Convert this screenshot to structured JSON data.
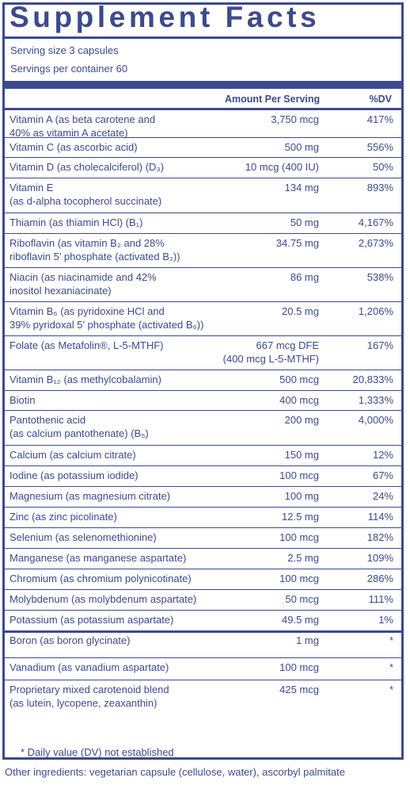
{
  "title": "Supplement Facts",
  "serving_size": "Serving size 3 capsules",
  "servings_per_container": "Servings per container  60",
  "header": {
    "amount": "Amount Per Serving",
    "dv": "%DV"
  },
  "rows": [
    {
      "lines": [
        "Vitamin A (as beta carotene and",
        "40% as vitamin A acetate)"
      ],
      "amount": [
        "3,750 mcg"
      ],
      "dv": "417%"
    },
    {
      "lines": [
        "Vitamin C (as ascorbic acid)"
      ],
      "amount": [
        "500 mg"
      ],
      "dv": "556%"
    },
    {
      "lines": [
        "Vitamin D (as cholecalciferol) (D₃)"
      ],
      "amount": [
        "10 mcg (400 IU)"
      ],
      "dv": "50%"
    },
    {
      "lines": [
        "Vitamin E",
        "(as d-alpha tocopherol succinate)"
      ],
      "amount": [
        "134 mg"
      ],
      "dv": "893%"
    },
    {
      "lines": [
        "Thiamin (as thiamin HCl) (B₁)"
      ],
      "amount": [
        "50 mg"
      ],
      "dv": "4,167%"
    },
    {
      "lines": [
        "Riboflavin (as vitamin B₂ and 28%",
        "riboflavin 5’ phosphate (activated B₂))"
      ],
      "amount": [
        "34.75 mg"
      ],
      "dv": "2,673%"
    },
    {
      "lines": [
        "Niacin (as niacinamide and 42%",
        "inositol hexaniacinate)"
      ],
      "amount": [
        "86 mg"
      ],
      "dv": "538%"
    },
    {
      "lines": [
        "Vitamin B₆ (as pyridoxine HCl and",
        "39% pyridoxal 5’ phosphate (activated B₆))"
      ],
      "amount": [
        "20.5 mg"
      ],
      "dv": "1,206%"
    },
    {
      "lines": [
        "Folate (as Metafolin®, L-5-MTHF)"
      ],
      "amount": [
        "667 mcg DFE",
        "(400 mcg L-5-MTHF)"
      ],
      "dv": "167%"
    },
    {
      "lines": [
        "Vitamin B₁₂ (as methylcobalamin)"
      ],
      "amount": [
        "500 mcg"
      ],
      "dv": "20,833%"
    },
    {
      "lines": [
        "Biotin"
      ],
      "amount": [
        "400 mcg"
      ],
      "dv": "1,333%"
    },
    {
      "lines": [
        "Pantothenic acid",
        "(as calcium pantothenate) (B₅)"
      ],
      "amount": [
        "200 mg"
      ],
      "dv": "4,000%"
    },
    {
      "lines": [
        "Calcium (as calcium citrate)"
      ],
      "amount": [
        "150 mg"
      ],
      "dv": "12%"
    },
    {
      "lines": [
        "Iodine (as potassium iodide)"
      ],
      "amount": [
        "100 mcg"
      ],
      "dv": "67%"
    },
    {
      "lines": [
        "Magnesium (as magnesium citrate)"
      ],
      "amount": [
        "100 mg"
      ],
      "dv": "24%"
    },
    {
      "lines": [
        "Zinc (as zinc picolinate)"
      ],
      "amount": [
        "12.5 mg"
      ],
      "dv": "114%"
    },
    {
      "lines": [
        "Selenium (as selenomethionine)"
      ],
      "amount": [
        "100 mcg"
      ],
      "dv": "182%"
    },
    {
      "lines": [
        "Manganese (as manganese aspartate)"
      ],
      "amount": [
        "2.5 mg"
      ],
      "dv": "109%"
    },
    {
      "lines": [
        "Chromium (as chromium polynicotinate)"
      ],
      "amount": [
        "100 mcg"
      ],
      "dv": "286%"
    },
    {
      "lines": [
        "Molybdenum (as molybdenum aspartate)"
      ],
      "amount": [
        "50 mcg"
      ],
      "dv": "111%"
    },
    {
      "lines": [
        "Potassium (as potassium aspartate)"
      ],
      "amount": [
        "49.5 mg"
      ],
      "dv": "1%"
    },
    {
      "lines": [
        "Boron (as boron glycinate)"
      ],
      "amount": [
        "1 mg"
      ],
      "dv": "*"
    },
    {
      "lines": [
        "Vanadium (as vanadium aspartate)"
      ],
      "amount": [
        "100 mcg"
      ],
      "dv": "*"
    },
    {
      "lines": [
        "Proprietary mixed carotenoid blend",
        "(as lutein, lycopene, zeaxanthin)"
      ],
      "amount": [
        "425 mcg"
      ],
      "dv": "*"
    }
  ],
  "footnote": "*  Daily value (DV) not established",
  "other_ingredients": "Other ingredients: vegetarian capsule (cellulose, water), ascorbyl palmitate"
}
